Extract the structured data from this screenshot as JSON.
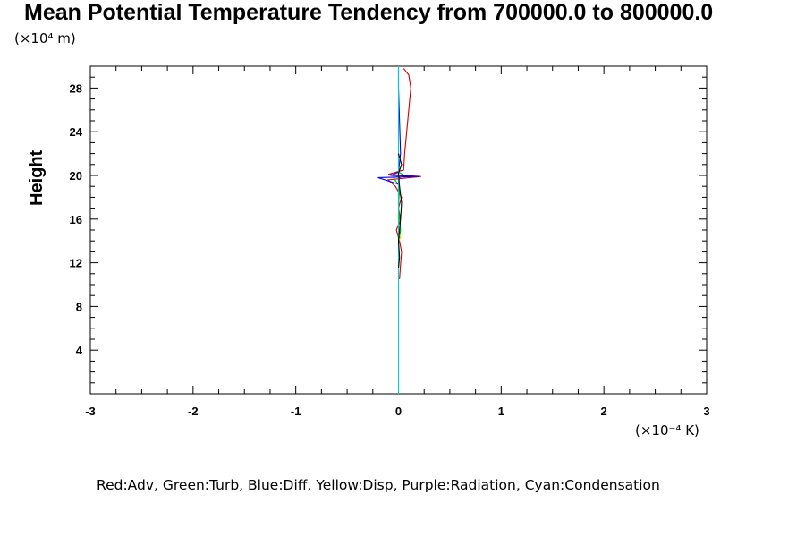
{
  "chart_data": {
    "type": "line",
    "title": "Mean Potential Temperature Tendency from 700000.0 to 800000.0",
    "ylabel": "Height",
    "y_unit": "(×10⁴ m)",
    "x_unit": "(×10⁻⁴ K)",
    "xlim": [
      -3,
      3
    ],
    "ylim": [
      0,
      30
    ],
    "x_ticks": [
      -3,
      -2,
      -1,
      0,
      1,
      2,
      3
    ],
    "x_tick_labels": [
      "-3",
      "-2",
      "-1",
      "0",
      "1",
      "2",
      "3"
    ],
    "y_ticks": [
      4,
      8,
      12,
      16,
      20,
      24,
      28
    ],
    "y_tick_labels": [
      "4",
      "8",
      "12",
      "16",
      "20",
      "24",
      "28"
    ],
    "grid": false,
    "legend_text": "Red:Adv, Green:Turb, Blue:Diff, Yellow:Disp, Purple:Radiation, Cyan:Condensation",
    "series": [
      {
        "name": "Adv",
        "color": "#cc0000",
        "points": [
          [
            0.01,
            10.5
          ],
          [
            0.02,
            11.8
          ],
          [
            0.03,
            13
          ],
          [
            0.01,
            14
          ],
          [
            -0.02,
            15
          ],
          [
            0.02,
            16
          ],
          [
            0.0,
            17
          ],
          [
            0.03,
            18
          ],
          [
            -0.03,
            19
          ],
          [
            -0.1,
            19.6
          ],
          [
            0.22,
            19.9
          ],
          [
            -0.1,
            20.1
          ],
          [
            0.05,
            20.5
          ],
          [
            0.06,
            22
          ],
          [
            0.08,
            24
          ],
          [
            0.1,
            26
          ],
          [
            0.12,
            28
          ],
          [
            0.1,
            29.2
          ],
          [
            0.05,
            29.8
          ]
        ]
      },
      {
        "name": "Turb",
        "color": "#00aa00",
        "points": [
          [
            0.0,
            13.8
          ],
          [
            0.01,
            14.2
          ],
          [
            0.02,
            15
          ],
          [
            0.0,
            17
          ],
          [
            0.01,
            19
          ],
          [
            -0.05,
            19.8
          ],
          [
            0.06,
            20
          ],
          [
            0.0,
            20.3
          ],
          [
            0.0,
            22
          ]
        ]
      },
      {
        "name": "Diff",
        "color": "#0000ee",
        "points": [
          [
            0.0,
            18
          ],
          [
            0.0,
            19.2
          ],
          [
            -0.2,
            19.8
          ],
          [
            0.2,
            19.9
          ],
          [
            -0.08,
            20
          ],
          [
            0.0,
            20.3
          ],
          [
            0.02,
            22
          ],
          [
            0.01,
            25
          ],
          [
            0.0,
            28
          ],
          [
            0.0,
            29.8
          ]
        ]
      },
      {
        "name": "Disp",
        "color": "#dddd00",
        "points": [
          [
            0.0,
            14
          ],
          [
            0.02,
            14.3
          ],
          [
            0.0,
            15
          ],
          [
            0.0,
            18
          ]
        ]
      },
      {
        "name": "Radiation",
        "color": "#cc00cc",
        "points": [
          [
            0.0,
            19.6
          ],
          [
            0.02,
            19.85
          ],
          [
            0.0,
            20.1
          ]
        ]
      },
      {
        "name": "Condensation",
        "color": "#00cccc",
        "points": [
          [
            0.0,
            0.0
          ],
          [
            0.0,
            10
          ],
          [
            0.0,
            19
          ],
          [
            0.0,
            20
          ],
          [
            0.0,
            21
          ],
          [
            0.0,
            30
          ]
        ]
      },
      {
        "name": "Black",
        "color": "#000000",
        "points": [
          [
            0.0,
            11.5
          ],
          [
            0.01,
            12.5
          ],
          [
            0.0,
            14
          ],
          [
            0.02,
            16
          ],
          [
            0.03,
            17.5
          ],
          [
            0.01,
            19
          ],
          [
            0.0,
            20.2
          ],
          [
            0.03,
            21
          ],
          [
            0.0,
            22
          ]
        ]
      }
    ]
  }
}
